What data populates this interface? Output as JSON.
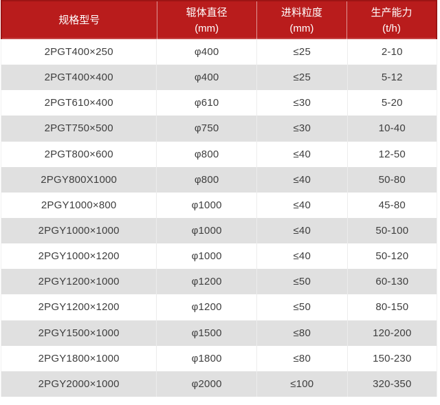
{
  "table": {
    "header": {
      "columns": [
        {
          "label": "规格型号",
          "unit": ""
        },
        {
          "label": "辊体直径",
          "unit": "(mm)"
        },
        {
          "label": "进料粒度",
          "unit": "(mm)"
        },
        {
          "label": "生产能力",
          "unit": "(t/h)"
        }
      ]
    },
    "rows": [
      [
        "2PGT400×250",
        "φ400",
        "≤25",
        "2-10"
      ],
      [
        "2PGT400×400",
        "φ400",
        "≤25",
        "5-12"
      ],
      [
        "2PGT610×400",
        "φ610",
        "≤30",
        "5-20"
      ],
      [
        "2PGT750×500",
        "φ750",
        "≤30",
        "10-40"
      ],
      [
        "2PGT800×600",
        "φ800",
        "≤40",
        "12-50"
      ],
      [
        "2PGY800X1000",
        "φ800",
        "≤40",
        "50-80"
      ],
      [
        "2PGY1000×800",
        "φ1000",
        "≤40",
        "45-80"
      ],
      [
        "2PGY1000×1000",
        "φ1000",
        "≤40",
        "50-100"
      ],
      [
        "2PGY1000×1200",
        "φ1000",
        "≤40",
        "50-120"
      ],
      [
        "2PGY1200×1000",
        "φ1200",
        "≤50",
        "60-130"
      ],
      [
        "2PGY1200×1200",
        "φ1200",
        "≤50",
        "80-150"
      ],
      [
        "2PGY1500×1000",
        "φ1500",
        "≤80",
        "120-200"
      ],
      [
        "2PGY1800×1000",
        "φ1800",
        "≤80",
        "150-230"
      ],
      [
        "2PGY2000×1000",
        "φ2000",
        "≤100",
        "320-350"
      ]
    ],
    "colors": {
      "header_bg": "#b91c1c",
      "header_border": "#9c1414",
      "header_divider": "rgba(255,255,255,0.55)",
      "header_text": "#ffffff",
      "row_bg": "#ffffff",
      "row_alt_bg": "#e0e0e0",
      "cell_divider": "#ececec",
      "body_edge": "#f1f1f1",
      "text": "#3e3e3e"
    }
  }
}
